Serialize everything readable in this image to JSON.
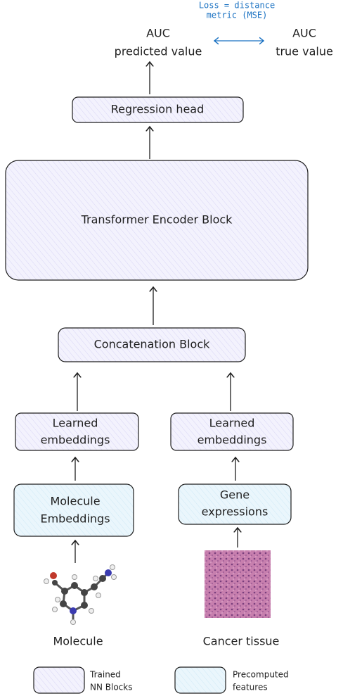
{
  "loss": {
    "lines": [
      "Loss = distance",
      "metric (MSE)"
    ]
  },
  "outputs": [
    {
      "lines": [
        "AUC",
        "predicted value"
      ]
    },
    {
      "lines": [
        "AUC",
        "true value"
      ]
    }
  ],
  "nodes": [
    {
      "lines": [
        "Regression head"
      ]
    },
    {
      "lines": [
        "Transformer Encoder Block"
      ]
    },
    {
      "lines": [
        "Concatenation Block"
      ]
    },
    {
      "lines": [
        "Learned",
        "embeddings"
      ]
    },
    {
      "lines": [
        "Learned",
        "embeddings"
      ]
    },
    {
      "lines": [
        "Molecule",
        "Embeddings"
      ]
    },
    {
      "lines": [
        "Gene",
        "expressions"
      ]
    }
  ],
  "inputs": [
    {
      "label": "Molecule"
    },
    {
      "label": "Cancer tissue"
    }
  ],
  "legend": [
    {
      "lines": [
        "Trained",
        "NN Blocks"
      ]
    },
    {
      "lines": [
        "Precomputed",
        "features"
      ]
    }
  ]
}
